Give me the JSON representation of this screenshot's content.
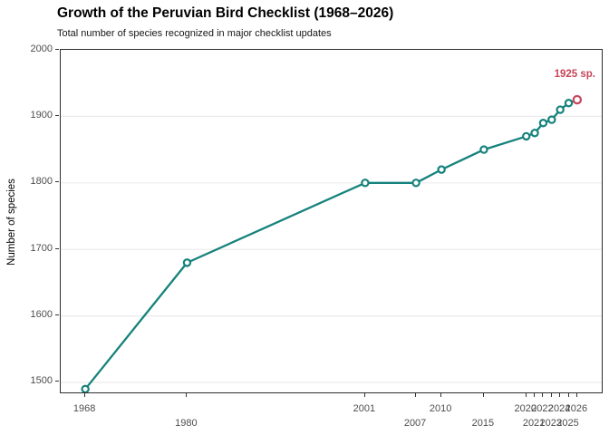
{
  "header": {
    "title": "Growth of the Peruvian Bird Checklist (1968–2026)",
    "subtitle": "Total number of species recognized in major checklist updates"
  },
  "chart_data": {
    "type": "line",
    "title": "Growth of the Peruvian Bird Checklist (1968–2026)",
    "subtitle": "Total number of species recognized in major checklist updates",
    "xlabel": "",
    "ylabel": "Number of species",
    "x": [
      1968,
      1980,
      2001,
      2007,
      2010,
      2015,
      2020,
      2021,
      2022,
      2023,
      2024,
      2025,
      2026
    ],
    "values": [
      1490,
      1680,
      1800,
      1800,
      1820,
      1850,
      1870,
      1875,
      1890,
      1895,
      1910,
      1920,
      1925
    ],
    "xticks": [
      1968,
      1980,
      2001,
      2007,
      2010,
      2015,
      2020,
      2021,
      2022,
      2023,
      2024,
      2025,
      2026
    ],
    "x_tick_rows": [
      1,
      2,
      1,
      2,
      1,
      2,
      1,
      2,
      1,
      2,
      1,
      2,
      1
    ],
    "yticks": [
      1500,
      1600,
      1700,
      1800,
      1900,
      2000
    ],
    "xlim": [
      1965.1,
      2028.9
    ],
    "ylim": [
      1485,
      2000
    ],
    "grid": "horizontal-major-only",
    "legend": "none",
    "line_color": "#16827C",
    "marker_fill": "#FFFFFF",
    "highlight_color": "#C6455A",
    "highlight_index": 12,
    "annotation": {
      "text": "1925 sp.",
      "x": 2026,
      "y": 1925
    }
  }
}
